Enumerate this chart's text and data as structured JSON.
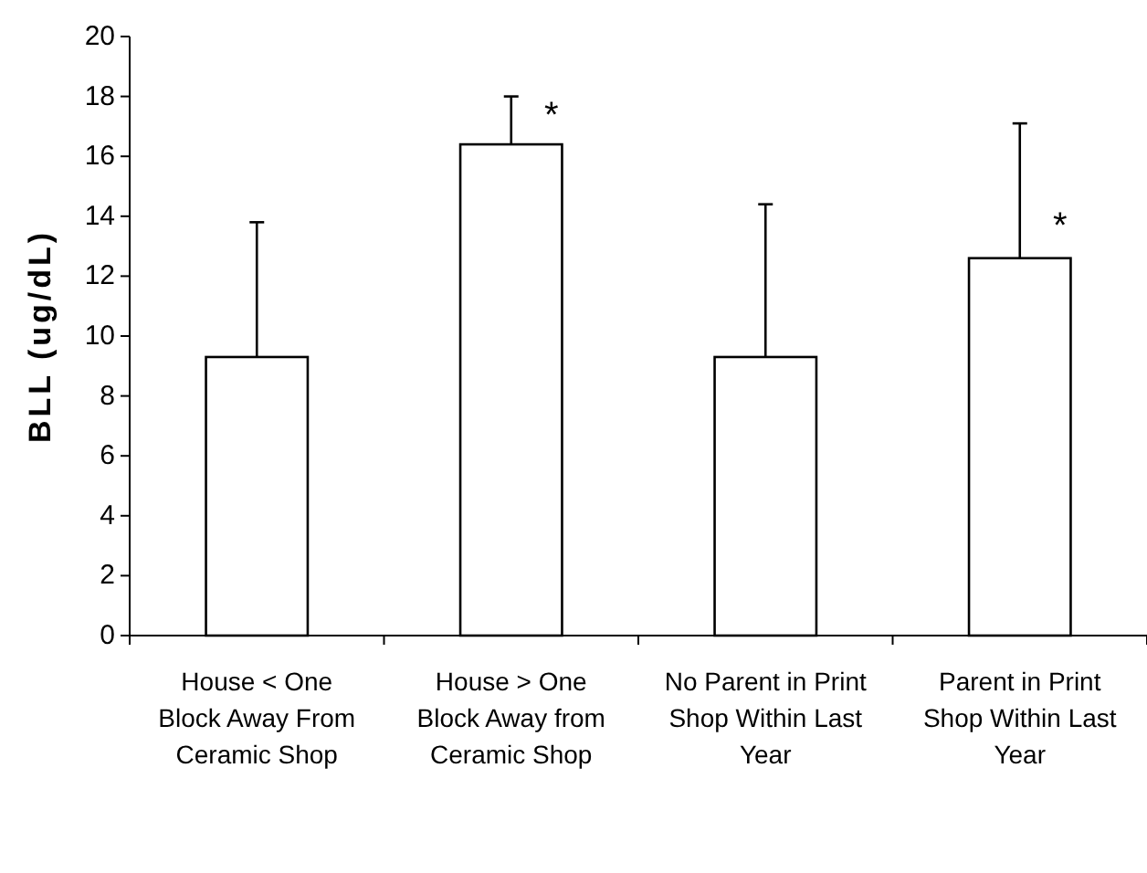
{
  "chart_data": {
    "type": "bar",
    "ylabel": "BLL (ug/dL)",
    "categories": [
      "House < One Block Away From Ceramic Shop",
      "House > One Block Away from Ceramic Shop",
      "No Parent in Print Shop Within Last Year",
      "Parent in Print Shop Within Last Year"
    ],
    "values": [
      9.3,
      16.4,
      9.3,
      12.6
    ],
    "errors": [
      [
        9.3,
        13.8
      ],
      [
        16.4,
        18
      ],
      [
        9.3,
        14.4
      ],
      [
        12.6,
        17.1
      ]
    ],
    "color": "#ffffff",
    "ylim": [
      0,
      20
    ],
    "yticks": [
      0,
      2,
      4,
      6,
      8,
      10,
      12,
      14,
      16,
      18,
      20
    ],
    "grid": false,
    "annotations": [
      {
        "text": "*",
        "x": "House > One Block Away from Ceramic Shop",
        "y": 17.3
      },
      {
        "text": "*",
        "x": "Parent in Print Shop Within Last Year",
        "y": 13.6
      }
    ]
  }
}
